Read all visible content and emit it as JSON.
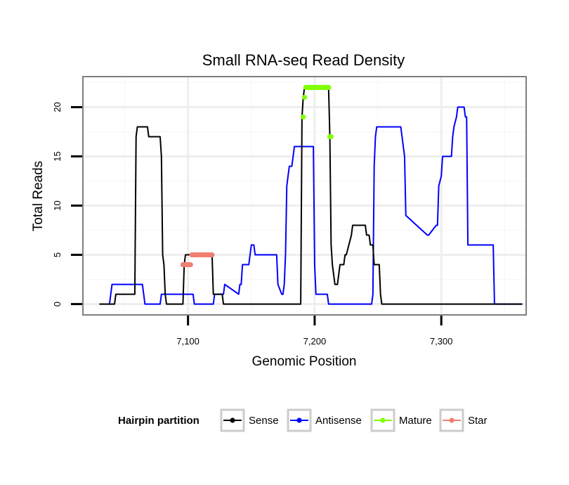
{
  "chart_data": {
    "type": "line",
    "title": "Small RNA-seq Read Density",
    "xlabel": "Genomic Position",
    "ylabel": "Total Reads",
    "xlim": [
      7017,
      7367
    ],
    "ylim": [
      -1.1,
      23.1
    ],
    "x_ticks": [
      {
        "value": 7100,
        "label": "7,100"
      },
      {
        "value": 7200,
        "label": "7,200"
      },
      {
        "value": 7300,
        "label": "7,300"
      }
    ],
    "y_ticks": [
      {
        "value": 0,
        "label": "0"
      },
      {
        "value": 5,
        "label": "5"
      },
      {
        "value": 10,
        "label": "10"
      },
      {
        "value": 15,
        "label": "15"
      },
      {
        "value": 20,
        "label": "20"
      }
    ],
    "grid": true,
    "legend": {
      "title": "Hairpin partition",
      "position": "bottom",
      "entries": [
        {
          "name": "Sense",
          "color": "#000000"
        },
        {
          "name": "Antisense",
          "color": "#0000ff"
        },
        {
          "name": "Mature",
          "color": "#7fff00"
        },
        {
          "name": "Star",
          "color": "#f08070"
        }
      ]
    },
    "series": [
      {
        "name": "Sense",
        "kind": "line",
        "color": "#000000",
        "x": [
          7030,
          7042,
          7043,
          7058,
          7059,
          7060,
          7068,
          7069,
          7078,
          7079,
          7080,
          7081,
          7082,
          7083,
          7084,
          7096,
          7097,
          7098,
          7119,
          7120,
          7127,
          7128,
          7189,
          7190,
          7191,
          7192,
          7193,
          7194,
          7211,
          7212,
          7213,
          7214,
          7215,
          7216,
          7217,
          7218,
          7219,
          7220,
          7223,
          7224,
          7225,
          7229,
          7230,
          7231,
          7240,
          7241,
          7243,
          7244,
          7246,
          7247,
          7251,
          7252,
          7253,
          7364
        ],
        "y": [
          0,
          0,
          1,
          1,
          17,
          18,
          18,
          17,
          17,
          15,
          5,
          4,
          1,
          0,
          0,
          0,
          4,
          5,
          5,
          1,
          1,
          0,
          0,
          19,
          21,
          22,
          22,
          22,
          22,
          17,
          6,
          4,
          3,
          2,
          2,
          2,
          3,
          4,
          4,
          5,
          5,
          7,
          8,
          8,
          8,
          7,
          7,
          6,
          6,
          4,
          4,
          1,
          0,
          0
        ]
      },
      {
        "name": "Antisense",
        "kind": "line",
        "color": "#0000ff",
        "x": [
          7037,
          7038,
          7039,
          7040,
          7064,
          7065,
          7066,
          7078,
          7079,
          7104,
          7105,
          7120,
          7121,
          7122,
          7128,
          7129,
          7140,
          7141,
          7142,
          7143,
          7148,
          7149,
          7150,
          7152,
          7153,
          7170,
          7171,
          7174,
          7175,
          7176,
          7177,
          7178,
          7179,
          7180,
          7182,
          7183,
          7184,
          7185,
          7199,
          7200,
          7201,
          7210,
          7211,
          7245,
          7246,
          7247,
          7248,
          7249,
          7250,
          7268,
          7269,
          7270,
          7271,
          7272,
          7289,
          7290,
          7296,
          7297,
          7298,
          7300,
          7301,
          7308,
          7309,
          7310,
          7312,
          7313,
          7314,
          7318,
          7319,
          7320,
          7321,
          7341,
          7342,
          7364
        ],
        "y": [
          0,
          0,
          1,
          2,
          2,
          1,
          0,
          0,
          1,
          1,
          0,
          0,
          1,
          1,
          1,
          2,
          1,
          2,
          2,
          4,
          4,
          5,
          6,
          6,
          5,
          5,
          2,
          1,
          1,
          2,
          5,
          12,
          13,
          14,
          14,
          15,
          16,
          16,
          16,
          4,
          1,
          1,
          0,
          0,
          1,
          14,
          17,
          18,
          18,
          18,
          17,
          16,
          15,
          9,
          7,
          7,
          8,
          8,
          12,
          13,
          15,
          15,
          17,
          18,
          19,
          20,
          20,
          20,
          19,
          19,
          6,
          6,
          0,
          0
        ]
      },
      {
        "name": "Mature",
        "kind": "points",
        "color": "#7fff00",
        "x": [
          7191,
          7192,
          7193,
          7194,
          7195,
          7196,
          7197,
          7198,
          7199,
          7200,
          7201,
          7202,
          7203,
          7204,
          7205,
          7206,
          7207,
          7208,
          7209,
          7210,
          7211,
          7212,
          7213
        ],
        "y": [
          19,
          21,
          22,
          22,
          22,
          22,
          22,
          22,
          22,
          22,
          22,
          22,
          22,
          22,
          22,
          22,
          22,
          22,
          22,
          22,
          22,
          17,
          17
        ]
      },
      {
        "name": "Star",
        "kind": "points",
        "color": "#f08070",
        "x": [
          7096,
          7097,
          7098,
          7099,
          7100,
          7101,
          7102,
          7103,
          7104,
          7105,
          7106,
          7107,
          7108,
          7109,
          7110,
          7111,
          7112,
          7113,
          7114,
          7115,
          7116,
          7117,
          7118,
          7119
        ],
        "y": [
          4,
          4,
          4,
          4,
          4,
          4,
          4,
          5,
          5,
          5,
          5,
          5,
          5,
          5,
          5,
          5,
          5,
          5,
          5,
          5,
          5,
          5,
          5,
          5
        ]
      }
    ]
  }
}
